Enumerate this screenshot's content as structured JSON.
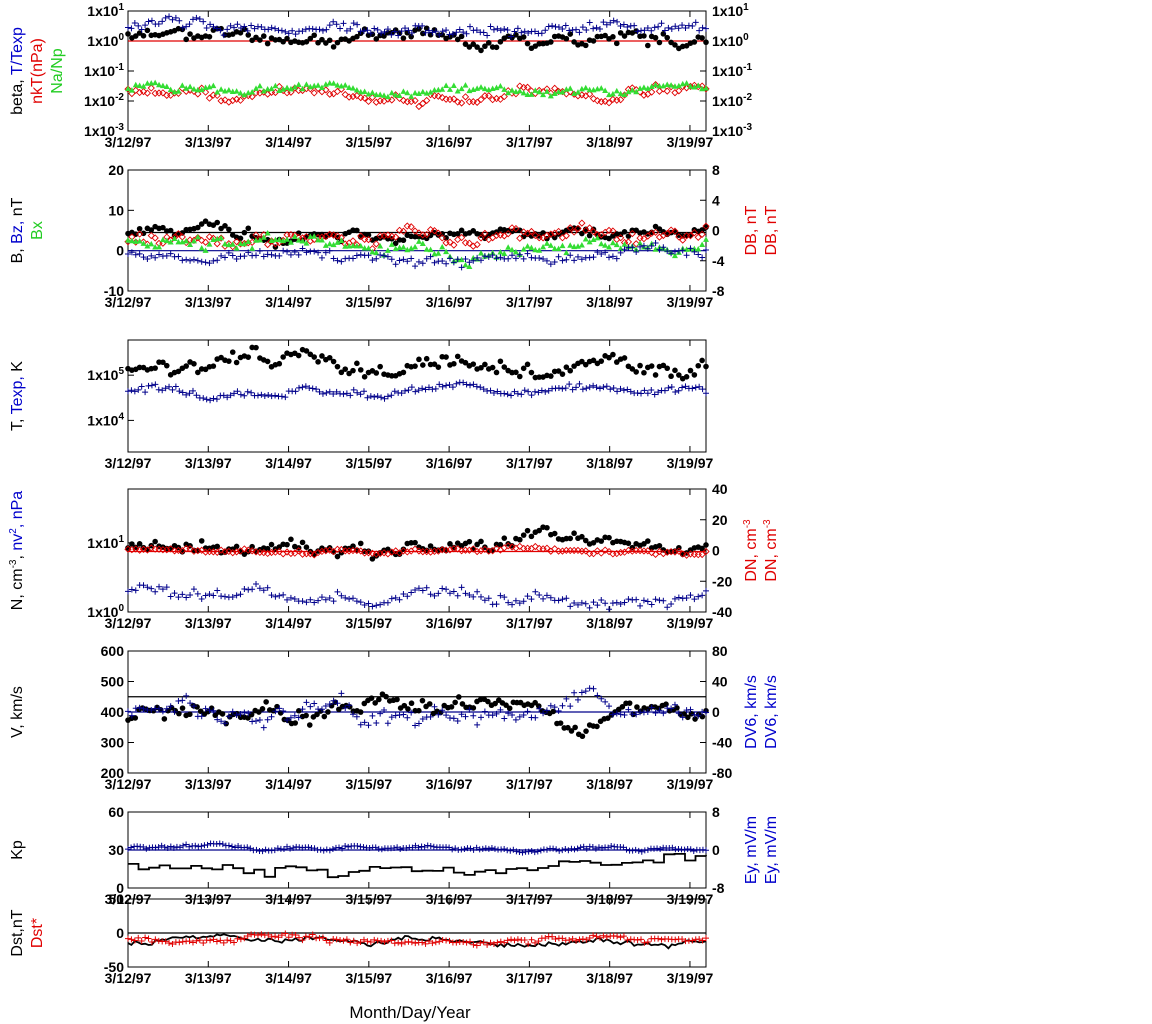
{
  "figure": {
    "x_title": "Month/Day/Year",
    "x_tick_labels": [
      "3/12/97",
      "3/13/97",
      "3/14/97",
      "3/15/97",
      "3/16/97",
      "3/17/97",
      "3/18/97",
      "3/19/97"
    ],
    "x_range_days": [
      0,
      7.2
    ]
  },
  "colors": {
    "black": "#000000",
    "red": "#e00000",
    "blue": "#00008b",
    "green": "#33dd33"
  },
  "chart_data": [
    {
      "id": "beta",
      "type": "scatter",
      "y_scale": "log",
      "ylim": [
        0.001,
        10
      ],
      "y_ticks": [
        "1x10^1",
        "1x10^0",
        "1x10^-1",
        "1x10^-2",
        "1x10^-3"
      ],
      "y2_ticks": [
        "1x10^1",
        "1x10^0",
        "1x10^-1",
        "1x10^-2",
        "1x10^-3"
      ],
      "y_label": [
        {
          "text": "beta,",
          "color": "#000000"
        },
        {
          "text": "T/Texp",
          "color": "#0000cc"
        }
      ],
      "y_label2": [
        {
          "text": "nkT(nPa)",
          "color": "#e00000"
        }
      ],
      "y_label3": [
        {
          "text": "Na/Np",
          "color": "#22cc22"
        }
      ],
      "hlines": [
        {
          "y": 1,
          "color": "#e00000"
        }
      ],
      "series": [
        {
          "color": "#000000",
          "marker": "dot",
          "level": 1.5,
          "spread": 0.25,
          "n": 150,
          "seed": 11
        },
        {
          "color": "#00008b",
          "marker": "plus",
          "level": 3,
          "spread": 0.2,
          "n": 170,
          "seed": 12
        },
        {
          "color": "#e00000",
          "marker": "diamond",
          "level": 0.02,
          "spread": 0.2,
          "n": 150,
          "seed": 13
        },
        {
          "color": "#33dd33",
          "marker": "triangle",
          "level": 0.025,
          "spread": 0.15,
          "n": 150,
          "seed": 14
        }
      ]
    },
    {
      "id": "bfield",
      "type": "scatter",
      "ylim": [
        -10,
        20
      ],
      "y_ticks": [
        "20",
        "10",
        "0",
        "-10"
      ],
      "y2_ticks": [
        "8",
        "4",
        "0",
        "-4",
        "-8"
      ],
      "y_label": [
        {
          "text": "B,",
          "color": "#000000"
        },
        {
          "text": "Bz,",
          "color": "#0000cc"
        },
        {
          "text": "nT",
          "color": "#000000"
        }
      ],
      "y_label2": [
        {
          "text": "Bx",
          "color": "#22cc22"
        }
      ],
      "y_right_label": [
        {
          "text": "DB, nT",
          "color": "#e00000"
        }
      ],
      "y_right_label2": [
        {
          "text": "DB, nT",
          "color": "#e00000"
        }
      ],
      "hlines": [
        {
          "y": 4.5,
          "color": "#000000"
        },
        {
          "y": 0,
          "color": "#00008b"
        }
      ],
      "series": [
        {
          "color": "#000000",
          "marker": "dot",
          "level": 5,
          "spread": 1.5,
          "n": 150,
          "seed": 21
        },
        {
          "color": "#e00000",
          "marker": "diamond",
          "level": 4,
          "spread": 2,
          "n": 150,
          "seed": 22
        },
        {
          "color": "#33dd33",
          "marker": "triangle",
          "level": 1,
          "spread": 2,
          "n": 150,
          "seed": 23
        },
        {
          "color": "#00008b",
          "marker": "plus",
          "level": -1.5,
          "spread": 1.5,
          "n": 150,
          "seed": 24
        }
      ]
    },
    {
      "id": "temperature",
      "type": "scatter",
      "y_scale": "log",
      "ylim": [
        2000,
        600000
      ],
      "y_ticks": [
        "1x10^5",
        "1x10^4"
      ],
      "y_label": [
        {
          "text": "T,",
          "color": "#000000"
        },
        {
          "text": "Texp,",
          "color": "#0000cc"
        },
        {
          "text": "K",
          "color": "#000000"
        }
      ],
      "series": [
        {
          "color": "#000000",
          "marker": "dot",
          "level": 150000,
          "spread": 0.2,
          "n": 150,
          "seed": 31
        },
        {
          "color": "#00008b",
          "marker": "plus",
          "level": 50000,
          "spread": 0.1,
          "n": 170,
          "seed": 32
        }
      ]
    },
    {
      "id": "density",
      "type": "scatter",
      "y_scale": "log",
      "ylim": [
        1,
        60
      ],
      "y_ticks": [
        "1x10^1",
        "1x10^0"
      ],
      "y2_ticks": [
        "40",
        "20",
        "0",
        "-20",
        "-40"
      ],
      "y_label": [
        {
          "text": "N, cm",
          "color": "#000000",
          "sup": "-3",
          "after": ",",
          "after_color": "#000000"
        },
        {
          "text": "nv",
          "color": "#0000cc",
          "sup": "2",
          "after": ", nPa",
          "after_color": "#0000cc"
        }
      ],
      "y_right_label": [
        {
          "text": "DN, cm",
          "color": "#e00000",
          "sup": "-3"
        }
      ],
      "y_right_label2": [
        {
          "text": "DN, cm",
          "color": "#e00000",
          "sup": "-3"
        }
      ],
      "hlines": [
        {
          "y": 7.5,
          "color": "#e00000"
        }
      ],
      "series": [
        {
          "color": "#000000",
          "marker": "dot",
          "level": 8,
          "spread": 0.12,
          "n": 150,
          "seed": 41
        },
        {
          "color": "#e00000",
          "marker": "diamond",
          "level": 7.5,
          "spread": 0.04,
          "n": 150,
          "seed": 42
        },
        {
          "color": "#00008b",
          "marker": "plus",
          "level": 1.8,
          "spread": 0.1,
          "n": 150,
          "seed": 43
        }
      ]
    },
    {
      "id": "velocity",
      "type": "scatter",
      "ylim": [
        200,
        600
      ],
      "y_ticks": [
        "600",
        "500",
        "400",
        "300",
        "200"
      ],
      "y2_ticks": [
        "80",
        "40",
        "0",
        "-40",
        "-80"
      ],
      "y_label": [
        {
          "text": "V, km/s",
          "color": "#000000"
        }
      ],
      "y_right_label": [
        {
          "text": "DV6, km/s",
          "color": "#0000cc"
        }
      ],
      "y_right_label2": [
        {
          "text": "DV6, km/s",
          "color": "#0000cc"
        }
      ],
      "hlines": [
        {
          "y": 450,
          "color": "#000000"
        },
        {
          "y": 400,
          "color": "#00008b"
        }
      ],
      "series": [
        {
          "color": "#000000",
          "marker": "dot",
          "level": 390,
          "spread": 30,
          "n": 160,
          "seed": 51
        },
        {
          "color": "#00008b",
          "marker": "plus",
          "level": 400,
          "spread": 35,
          "n": 150,
          "seed": 52
        }
      ]
    },
    {
      "id": "kp",
      "type": "line",
      "ylim": [
        0,
        60
      ],
      "y_ticks": [
        "60",
        "30",
        "0"
      ],
      "y2_ticks": [
        "8",
        "0",
        "-8"
      ],
      "y_label": [
        {
          "text": "Kp",
          "color": "#000000"
        }
      ],
      "y_right_label": [
        {
          "text": "Ey,  mV/m",
          "color": "#0000cc"
        }
      ],
      "y_right_label2": [
        {
          "text": "Ey,  mV/m",
          "color": "#0000cc"
        }
      ],
      "hlines": [
        {
          "y": 30,
          "color": "#00008b"
        }
      ],
      "series": [
        {
          "color": "#00008b",
          "marker": "plus",
          "level": 31,
          "spread": 1.5,
          "n": 190,
          "seed": 61
        },
        {
          "color": "#000000",
          "marker": "step",
          "level": 17,
          "spread": 5,
          "n": 56,
          "seed": 62
        }
      ]
    },
    {
      "id": "dst",
      "type": "line",
      "ylim": [
        -50,
        50
      ],
      "y_ticks": [
        "50",
        "0",
        "-50"
      ],
      "y_label": [
        {
          "text": "Dst,nT",
          "color": "#000000"
        }
      ],
      "y_label2": [
        {
          "text": "Dst*",
          "color": "#e00000"
        }
      ],
      "hlines": [
        {
          "y": 0,
          "color": "#000000"
        }
      ],
      "series": [
        {
          "color": "#000000",
          "marker": "line",
          "level": -10,
          "spread": 5,
          "n": 170,
          "seed": 71
        },
        {
          "color": "#e00000",
          "marker": "plus",
          "level": -12,
          "spread": 5,
          "n": 170,
          "seed": 72
        }
      ]
    }
  ]
}
